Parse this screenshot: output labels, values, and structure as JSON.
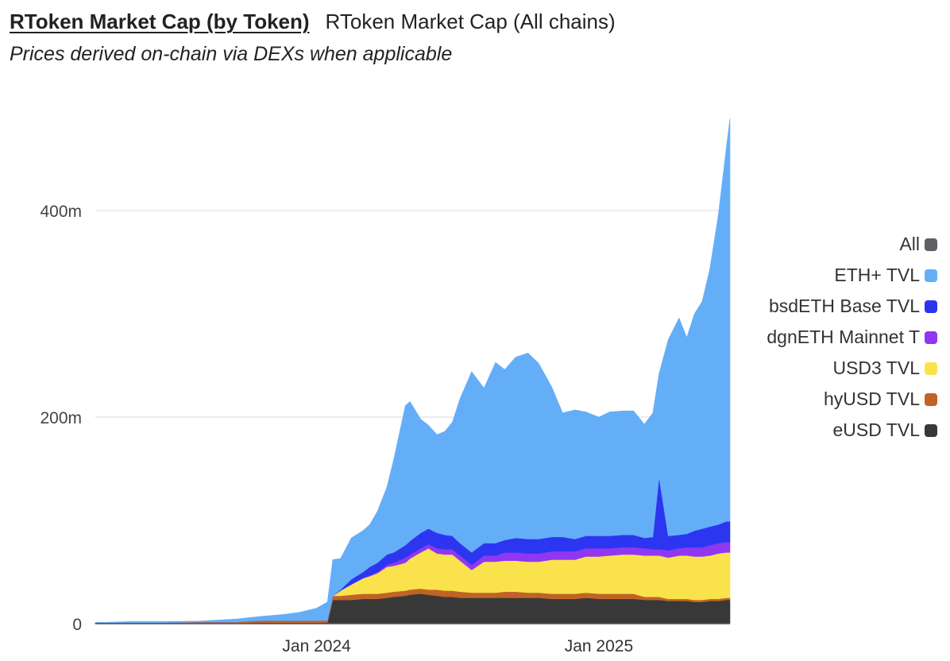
{
  "tabs": [
    {
      "label": "RToken Market Cap (by Token)",
      "active": true
    },
    {
      "label": "RToken Market Cap (All chains)",
      "active": false
    }
  ],
  "subtitle": "Prices derived on-chain via DEXs when applicable",
  "legend": [
    {
      "label": "All",
      "color": "#5f6064"
    },
    {
      "label": "ETH+ TVL",
      "color": "#64aef8"
    },
    {
      "label": "bsdETH Base TVL",
      "color": "#2c36f0"
    },
    {
      "label": "dgnETH Mainnet T",
      "color": "#9137f2"
    },
    {
      "label": "USD3 TVL",
      "color": "#fae24c"
    },
    {
      "label": "hyUSD TVL",
      "color": "#c06326"
    },
    {
      "label": "eUSD TVL",
      "color": "#383838"
    }
  ],
  "chart_data": {
    "type": "area",
    "stacked": true,
    "title": "",
    "xlabel": "",
    "ylabel": "",
    "ylim": [
      0,
      500
    ],
    "y_unit": "millions",
    "y_ticks": [
      {
        "value": 0,
        "label": "0"
      },
      {
        "value": 200,
        "label": "200m"
      },
      {
        "value": 400,
        "label": "400m"
      }
    ],
    "xlim": [
      "2023-03-20",
      "2025-06-20"
    ],
    "x_ticks": [
      {
        "value": "2024-01-01",
        "label": "Jan 2024"
      },
      {
        "value": "2025-01-01",
        "label": "Jan 2025"
      }
    ],
    "grid": true,
    "legend_position": "right",
    "x": [
      "2023-03-20",
      "2023-05-01",
      "2023-06-15",
      "2023-08-01",
      "2023-08-25",
      "2023-09-20",
      "2023-10-20",
      "2023-11-20",
      "2023-12-10",
      "2024-01-01",
      "2024-01-15",
      "2024-01-22",
      "2024-02-01",
      "2024-02-15",
      "2024-03-01",
      "2024-03-10",
      "2024-03-20",
      "2024-04-01",
      "2024-04-10",
      "2024-04-25",
      "2024-05-01",
      "2024-05-15",
      "2024-05-25",
      "2024-06-05",
      "2024-06-15",
      "2024-06-25",
      "2024-07-05",
      "2024-07-20",
      "2024-08-05",
      "2024-08-20",
      "2024-09-01",
      "2024-09-15",
      "2024-10-01",
      "2024-10-15",
      "2024-11-01",
      "2024-11-15",
      "2024-12-01",
      "2024-12-15",
      "2025-01-01",
      "2025-01-15",
      "2025-02-01",
      "2025-02-15",
      "2025-03-01",
      "2025-03-12",
      "2025-03-20",
      "2025-04-01",
      "2025-04-15",
      "2025-04-25",
      "2025-05-05",
      "2025-05-15",
      "2025-05-25",
      "2025-06-05",
      "2025-06-15",
      "2025-06-20"
    ],
    "series": [
      {
        "name": "eUSD TVL",
        "color": "#383838",
        "values": [
          0.5,
          0.5,
          0.5,
          0.5,
          0.5,
          0.5,
          1,
          1,
          1,
          1,
          1,
          23,
          23,
          23,
          24,
          24,
          24,
          25,
          26,
          27,
          28,
          29,
          28,
          27,
          26,
          26,
          25,
          25,
          25,
          25,
          25,
          25,
          25,
          25,
          24,
          24,
          24,
          25,
          24,
          24,
          24,
          24,
          23,
          23,
          23,
          22,
          22,
          22,
          21,
          21,
          22,
          22,
          23,
          23
        ]
      },
      {
        "name": "hyUSD TVL",
        "color": "#c06326",
        "values": [
          0.5,
          0.5,
          0.5,
          1,
          1,
          1,
          2,
          2,
          2,
          2,
          2,
          4,
          4,
          5,
          5,
          5,
          5,
          5,
          5,
          5,
          5,
          5,
          5,
          6,
          6,
          6,
          6,
          5,
          5,
          5,
          6,
          6,
          5,
          5,
          5,
          5,
          5,
          5,
          5,
          5,
          5,
          5,
          3,
          3,
          3,
          2,
          2,
          2,
          2,
          2,
          2,
          2,
          2,
          2
        ]
      },
      {
        "name": "USD3 TVL",
        "color": "#fae24c",
        "values": [
          0,
          0,
          0,
          0,
          0,
          0,
          0,
          0,
          0,
          0,
          0,
          0,
          5,
          10,
          15,
          17,
          20,
          25,
          25,
          27,
          30,
          35,
          40,
          35,
          35,
          35,
          30,
          22,
          30,
          30,
          30,
          30,
          30,
          30,
          33,
          33,
          33,
          35,
          36,
          37,
          38,
          38,
          40,
          40,
          40,
          40,
          42,
          42,
          42,
          42,
          42,
          44,
          44,
          44
        ]
      },
      {
        "name": "dgnETH Mainnet T",
        "color": "#9137f2",
        "values": [
          0,
          0,
          0,
          0,
          0,
          0,
          0,
          0,
          0,
          0,
          0,
          0,
          0,
          0,
          0,
          1,
          1,
          2,
          3,
          5,
          4,
          4,
          4,
          5,
          5,
          5,
          5,
          5,
          6,
          6,
          8,
          8,
          8,
          8,
          8,
          8,
          8,
          8,
          8,
          7,
          7,
          7,
          7,
          6,
          6,
          7,
          7,
          8,
          9,
          9,
          10,
          10,
          10,
          10
        ]
      },
      {
        "name": "bsdETH Base TVL",
        "color": "#2c36f0",
        "values": [
          0,
          0,
          0,
          0,
          0,
          0,
          0,
          0,
          0,
          0,
          0,
          0,
          1,
          5,
          6,
          8,
          9,
          10,
          10,
          12,
          13,
          15,
          15,
          15,
          14,
          13,
          12,
          12,
          12,
          12,
          12,
          14,
          14,
          14,
          14,
          14,
          12,
          12,
          12,
          12,
          12,
          12,
          10,
          12,
          70,
          14,
          13,
          13,
          16,
          18,
          18,
          18,
          20,
          20
        ]
      },
      {
        "name": "ETH+ TVL",
        "color": "#64aef8",
        "values": [
          0,
          1,
          1,
          1,
          2,
          3,
          4,
          6,
          8,
          12,
          18,
          35,
          30,
          40,
          40,
          41,
          50,
          65,
          90,
          135,
          135,
          110,
          100,
          95,
          100,
          110,
          140,
          175,
          150,
          175,
          165,
          175,
          180,
          170,
          145,
          120,
          125,
          120,
          115,
          120,
          120,
          120,
          110,
          120,
          100,
          190,
          210,
          190,
          210,
          220,
          250,
          300,
          360,
          390
        ]
      }
    ]
  }
}
